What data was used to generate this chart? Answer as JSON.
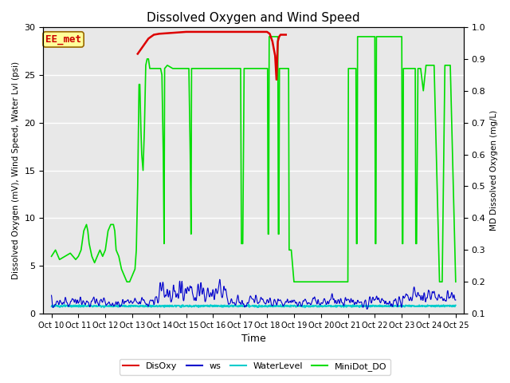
{
  "title": "Dissolved Oxygen and Wind Speed",
  "ylabel_left": "Dissolved Oxygen (mV), Wind Speed, Water Lvl (psi)",
  "ylabel_right": "MD Dissolved Oxygen (mg/L)",
  "xlabel": "Time",
  "ylim_left": [
    0,
    30
  ],
  "ylim_right": [
    0.1,
    1.0
  ],
  "xtick_labels": [
    "Oct 10",
    "Oct 11",
    "Oct 12",
    "Oct 13",
    "Oct 14",
    "Oct 15",
    "Oct 16",
    "Oct 17",
    "Oct 18",
    "Oct 19",
    "Oct 20",
    "Oct 21",
    "Oct 22",
    "Oct 23",
    "Oct 24",
    "Oct 25"
  ],
  "annotation_text": "EE_met",
  "bg_color": "#e8e8e8",
  "colors": {
    "disoxy": "#dd0000",
    "ws": "#0000cc",
    "water": "#00cccc",
    "minidot": "#00dd00"
  }
}
